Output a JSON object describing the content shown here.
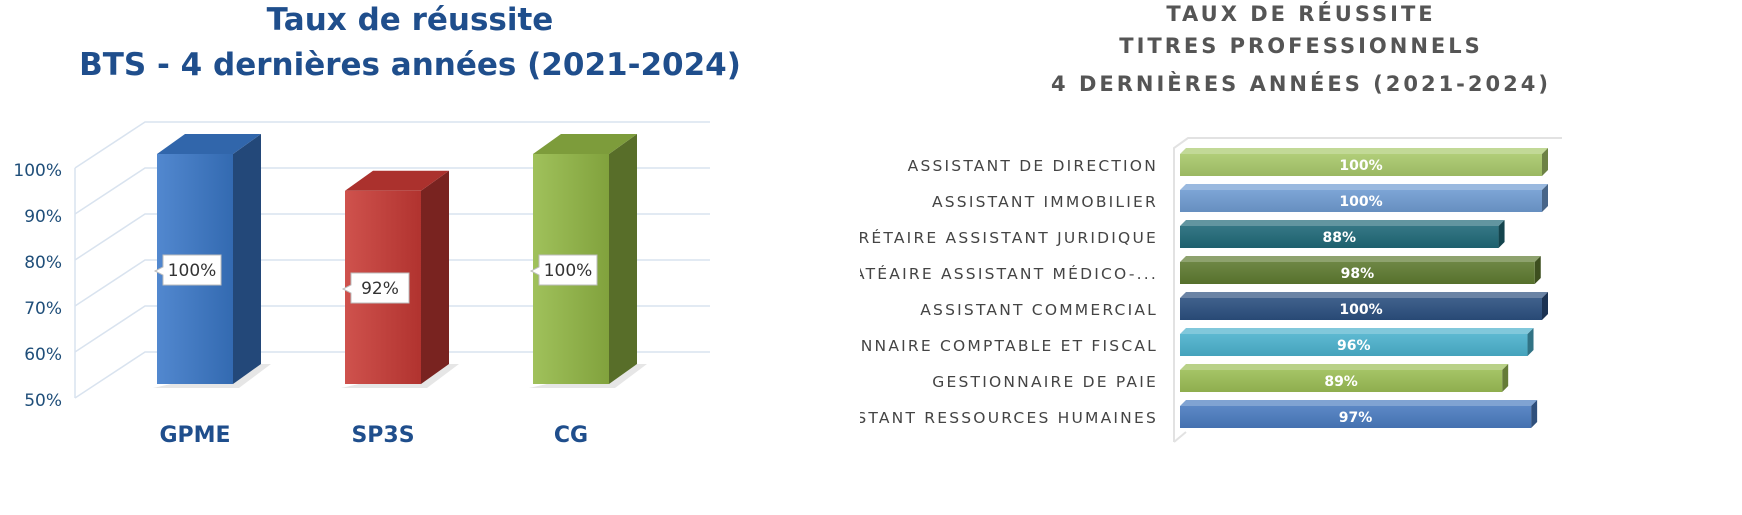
{
  "chart_data": [
    {
      "type": "bar",
      "title": [
        "Taux de réussite",
        "BTS - 4 dernières années (2021-2024)"
      ],
      "categories": [
        "GPME",
        "SP3S",
        "CG"
      ],
      "values": [
        100,
        92,
        100
      ],
      "value_labels": [
        "100%",
        "92%",
        "100%"
      ],
      "ylim": [
        50,
        100
      ],
      "yticks": [
        "50%",
        "60%",
        "70%",
        "80%",
        "90%",
        "100%"
      ],
      "colors": [
        "#3a78c9",
        "#c93a35",
        "#93b845"
      ],
      "grid": true,
      "style": "3d-column"
    },
    {
      "type": "bar",
      "orientation": "horizontal",
      "title": [
        "TAUX DE RÉUSSITE",
        "TITRES PROFESSIONNELS",
        "4 DERNIÈRES ANNÉES (2021-2024)"
      ],
      "categories": [
        "ASSISTANT DE DIRECTION",
        "ASSISTANT IMMOBILIER",
        "SECRÉTAIRE ASSISTANT JURIDIQUE",
        "SECRATÉAIRE ASSISTANT MÉDICO-...",
        "ASSISTANT COMMERCIAL",
        "GESTIONNAIRE COMPTABLE ET FISCAL",
        "GESTIONNAIRE DE PAIE",
        "ASSISTANT RESSOURCES HUMAINES"
      ],
      "values": [
        100,
        100,
        88,
        98,
        100,
        96,
        89,
        97
      ],
      "value_labels": [
        "100%",
        "100%",
        "88%",
        "98%",
        "100%",
        "96%",
        "89%",
        "97%"
      ],
      "xlim": [
        0,
        100
      ],
      "colors": [
        "#a8c86a",
        "#6f9bd1",
        "#1f6877",
        "#5e7a30",
        "#2b4f7f",
        "#4bb1cc",
        "#9bbd55",
        "#4a7bbf"
      ],
      "style": "3d-bar"
    }
  ]
}
